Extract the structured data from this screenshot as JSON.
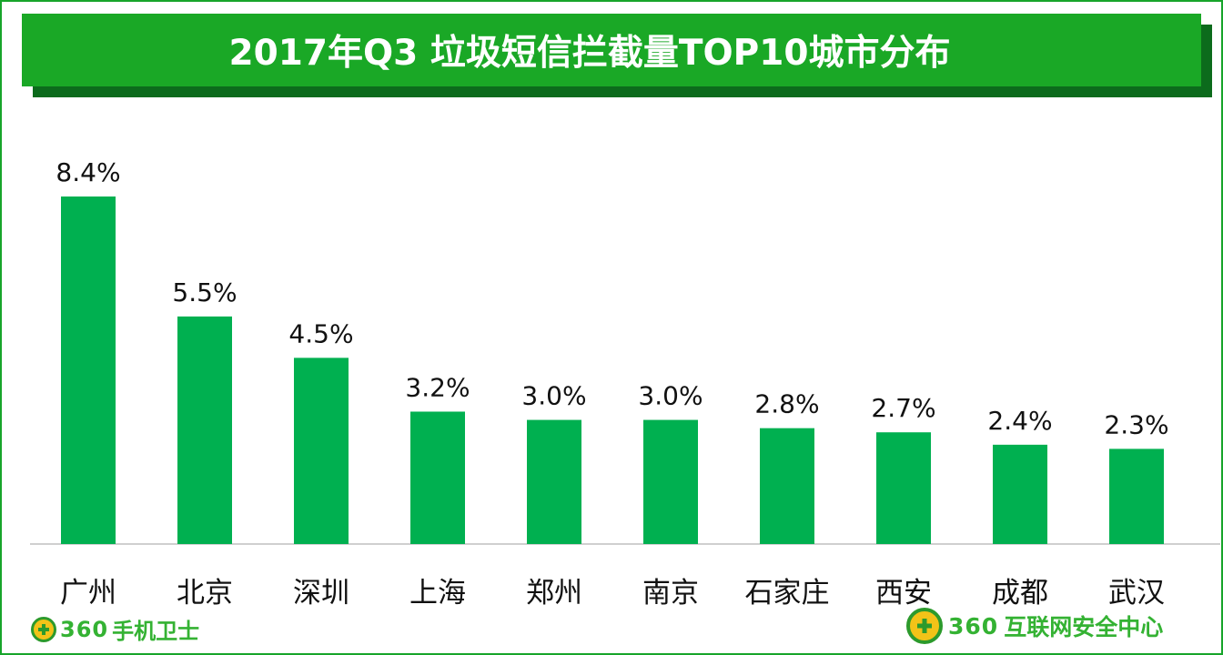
{
  "title": "2017年Q3 垃圾短信拦截量TOP10城市分布",
  "colors": {
    "frame": "#17a52b",
    "title_bg": "#1aa826",
    "title_shadow": "#0c6b1c",
    "bar": "#00b050",
    "logo": "#34b233"
  },
  "chart_data": {
    "type": "bar",
    "title": "2017年Q3 垃圾短信拦截量TOP10城市分布",
    "categories": [
      "广州",
      "北京",
      "深圳",
      "上海",
      "郑州",
      "南京",
      "石家庄",
      "西安",
      "成都",
      "武汉"
    ],
    "values": [
      8.4,
      5.5,
      4.5,
      3.2,
      3.0,
      3.0,
      2.8,
      2.7,
      2.4,
      2.3
    ],
    "data_labels": [
      "8.4%",
      "5.5%",
      "4.5%",
      "3.2%",
      "3.0%",
      "3.0%",
      "2.8%",
      "2.7%",
      "2.4%",
      "2.3%"
    ],
    "xlabel": "",
    "ylabel": "",
    "ylim": [
      0,
      8.4
    ],
    "grid": false,
    "legend": "none"
  },
  "footer": {
    "left_logo_number": "360",
    "left_logo_text": "手机卫士",
    "left_logo_icon": "shield-plus-icon",
    "right_logo_number": "360",
    "right_logo_text": "互联网安全中心",
    "right_logo_icon": "shield-plus-icon"
  }
}
